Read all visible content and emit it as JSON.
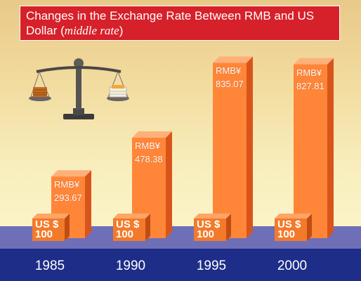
{
  "title": {
    "line1": "Changes in the Exchange Rate Between RMB and US",
    "line2_plain": "Dollar (",
    "line2_italic": "middle rate",
    "line2_close": ")"
  },
  "chart_data": {
    "type": "bar",
    "title": "Changes in the Exchange Rate Between RMB and US Dollar (middle rate)",
    "categories": [
      "1985",
      "1990",
      "1995",
      "2000"
    ],
    "values": [
      293.67,
      478.38,
      835.07,
      827.81
    ],
    "value_prefix": "RMB¥",
    "value_labels": [
      "293.67",
      "478.38",
      "835.07",
      "827.81"
    ],
    "base_label_top": "US $",
    "base_label_bottom": "100",
    "ylim": [
      0,
      900
    ],
    "grid": false,
    "legend": "none"
  },
  "colors": {
    "bar_front": "#ff8638",
    "bar_side": "#d9541a",
    "bar_top": "#ffb07a",
    "box_front": "#f27a2a",
    "box_side": "#c24d12",
    "box_top": "#ffa566",
    "title_bg": "#d6202a",
    "floor": "#6f6fb8",
    "axis_band": "#1d2d88"
  },
  "decoration": {
    "icon": "balance-scale-icon"
  }
}
